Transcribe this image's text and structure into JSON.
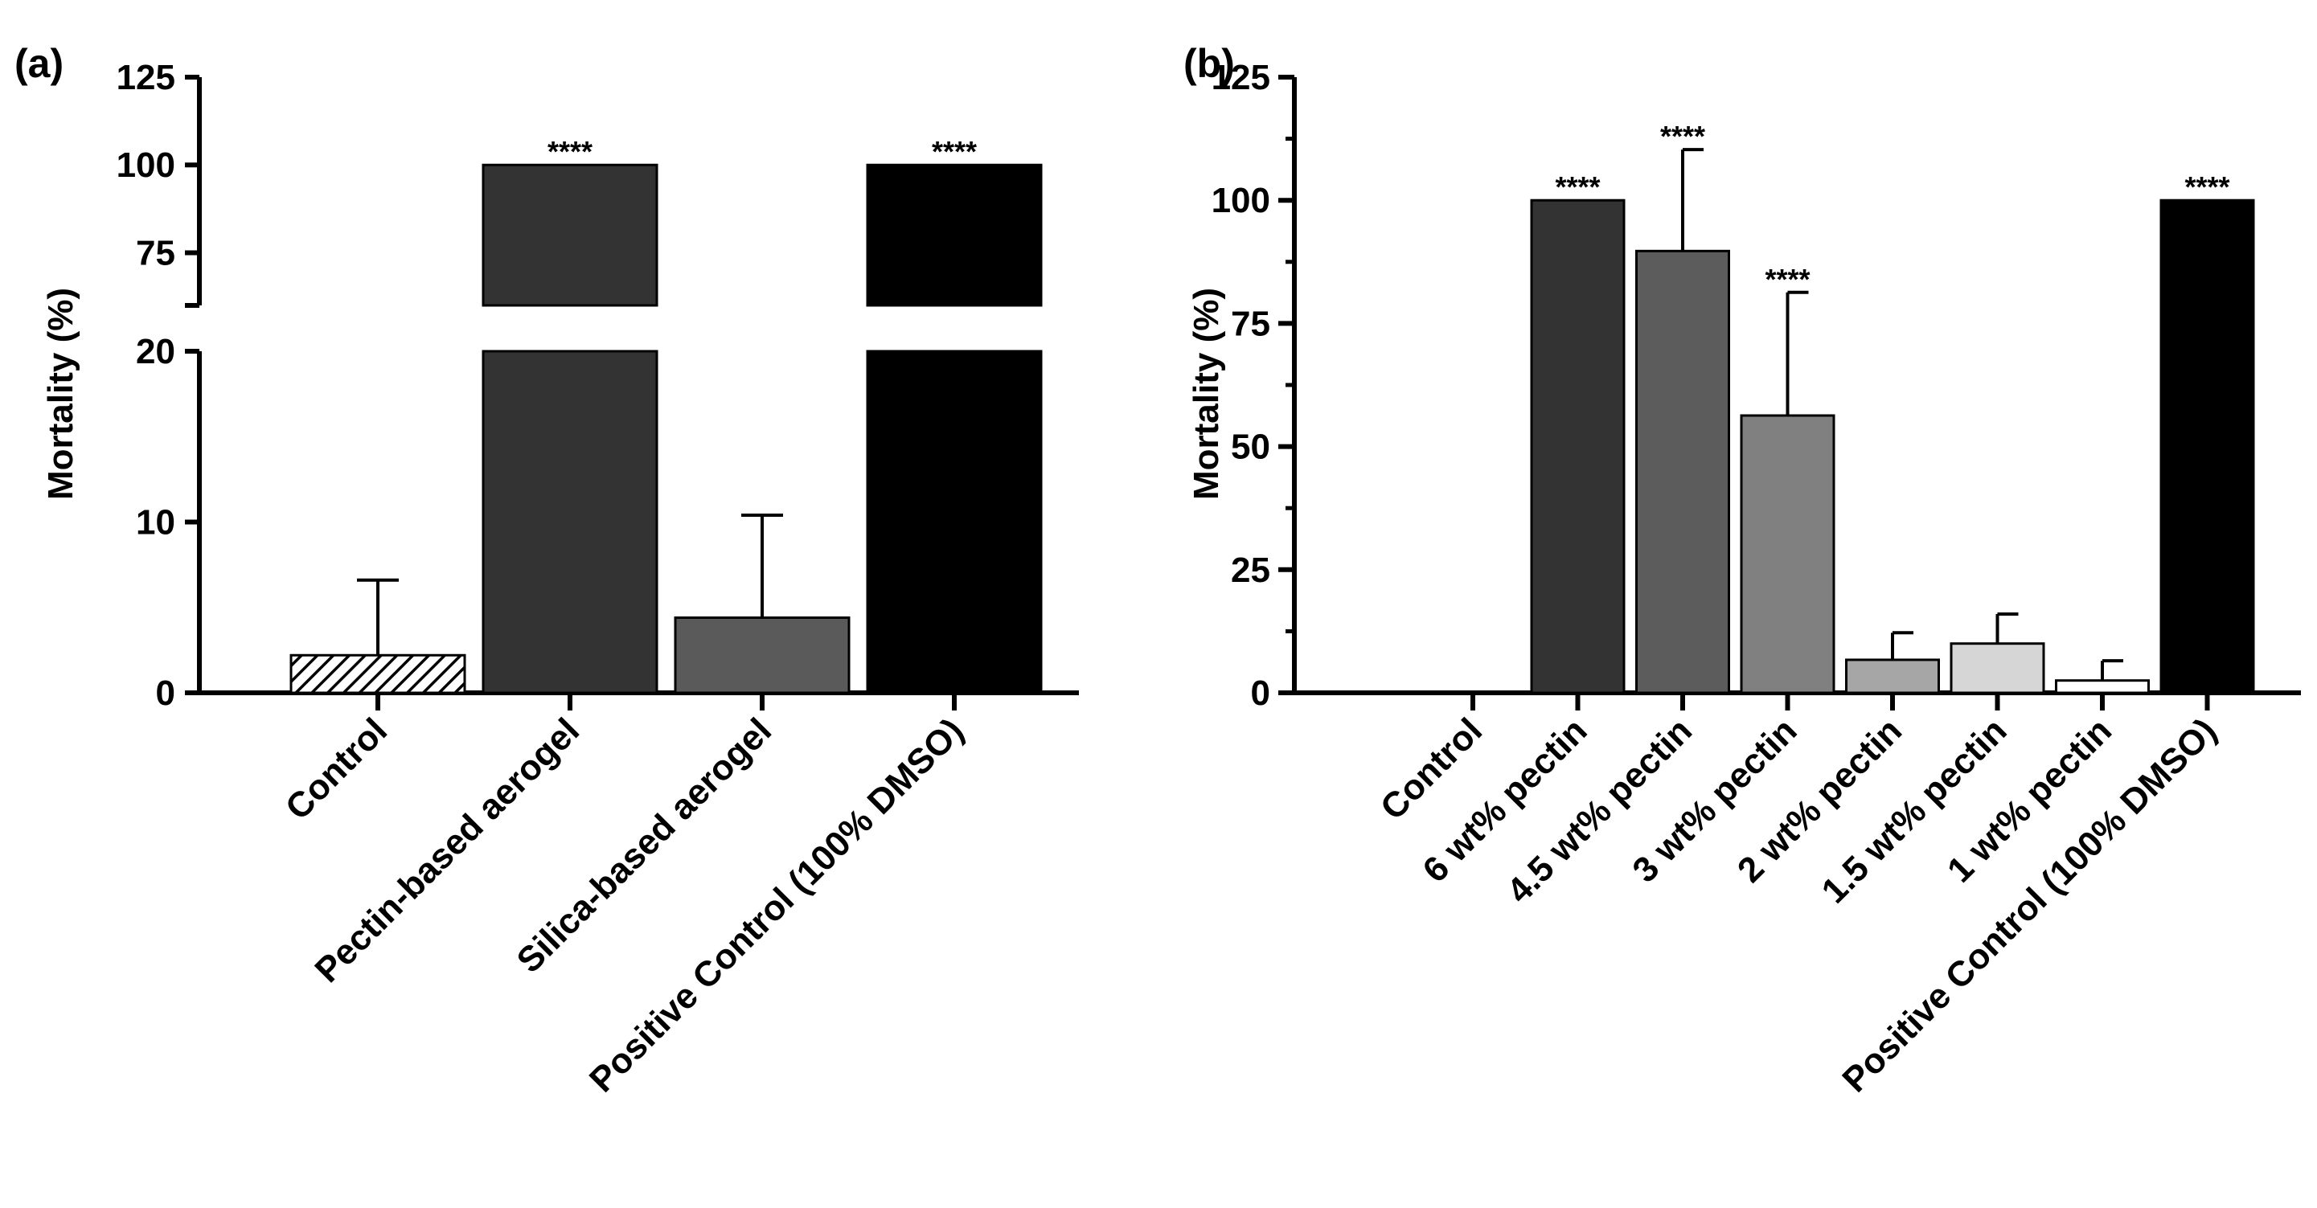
{
  "chart_data": [
    {
      "panel_label": "(a)",
      "type": "bar",
      "ylabel": "Mortality (%)",
      "axis_break": {
        "lower_ylim": [
          0,
          20
        ],
        "upper_ylim": [
          60,
          125
        ]
      },
      "lower_ticks": [
        "0",
        "10",
        "20"
      ],
      "upper_ticks": [
        "75",
        "100",
        "125"
      ],
      "categories": [
        "Control",
        "Pectin-based aerogel",
        "Silica-based aerogel",
        "Positive Control (100% DMSO)"
      ],
      "values": [
        2.2,
        100,
        4.4,
        100
      ],
      "errors": [
        4.4,
        0,
        6.0,
        0
      ],
      "fills": [
        "hatch",
        "#333333",
        "#5a5a5a",
        "#000000"
      ],
      "annotations": [
        "",
        "****",
        "",
        "****"
      ]
    },
    {
      "panel_label": "(b)",
      "type": "bar",
      "ylabel": "Mortality (%)",
      "ylim": [
        0,
        125
      ],
      "ticks": [
        "0",
        "25",
        "50",
        "75",
        "100",
        "125"
      ],
      "categories": [
        "Control",
        "6 wt% pectin",
        "4.5 wt% pectin",
        "3 wt% pectin",
        "2 wt% pectin",
        "1.5 wt% pectin",
        "1 wt% pectin",
        "Positive Control (100% DMSO)"
      ],
      "values": [
        0,
        100,
        89.7,
        56.3,
        6.7,
        10.0,
        2.5,
        100
      ],
      "errors": [
        0,
        0,
        20.6,
        25.0,
        5.5,
        6.0,
        4.0,
        0
      ],
      "fills": [
        "#ffffff",
        "#333333",
        "#5c5c5c",
        "#808080",
        "#a6a6a6",
        "#d6d6d6",
        "#ffffff",
        "#000000"
      ],
      "annotations": [
        "",
        "****",
        "****",
        "****",
        "",
        "",
        "",
        "****"
      ]
    }
  ]
}
